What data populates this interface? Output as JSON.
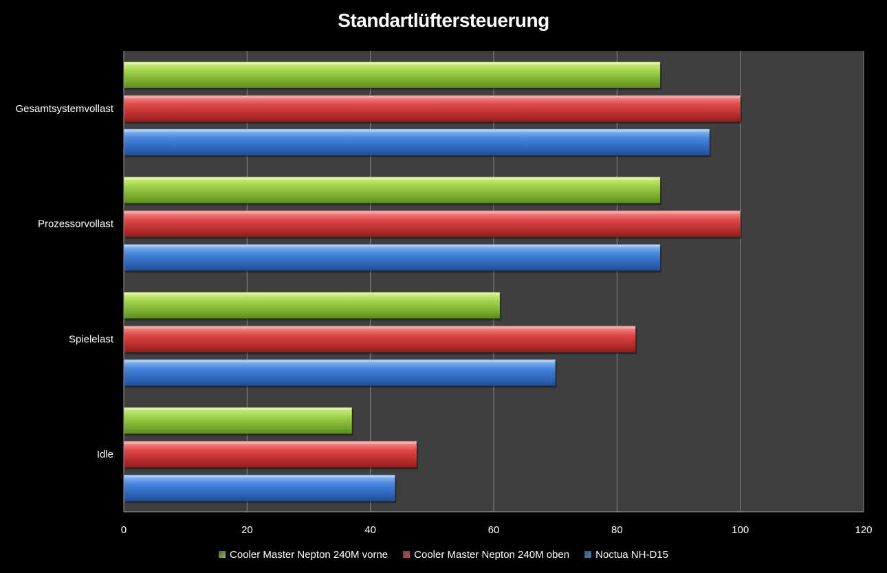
{
  "chart_data": {
    "type": "bar",
    "orientation": "horizontal",
    "title": "Standartlüftersteuerung",
    "xlabel": "",
    "ylabel": "",
    "xlim": [
      0,
      120
    ],
    "x_ticks": [
      "0",
      "20",
      "40",
      "60",
      "80",
      "100",
      "120"
    ],
    "grid": "vertical",
    "legend_position": "bottom",
    "categories": [
      "Gesamtsystemvollast",
      "Prozessorvollast",
      "Spielelast",
      "Idle"
    ],
    "series": [
      {
        "name": "Cooler Master Nepton 240M vorne",
        "color": "#8cc43c",
        "values": [
          87,
          87,
          61,
          37
        ]
      },
      {
        "name": "Cooler Master Nepton 240M oben",
        "color": "#d93a3a",
        "values": [
          100,
          100,
          83,
          47.5
        ]
      },
      {
        "name": "Noctua NH-D15",
        "color": "#3c78d2",
        "values": [
          95,
          87,
          70,
          44
        ]
      }
    ],
    "background": "#000000",
    "plot_background": "#3f3f3f"
  }
}
